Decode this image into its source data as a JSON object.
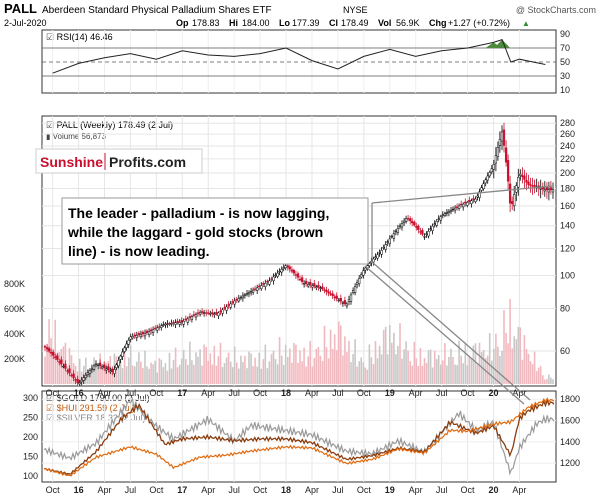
{
  "header": {
    "symbol": "PALL",
    "name": "Aberdeen Standard Physical Palladium Shares ETF",
    "exchange": "NYSE",
    "watermark": "@ StockCharts.com",
    "date": "2-Jul-2020",
    "op_label": "Op",
    "op": "178.83",
    "hi_label": "Hi",
    "hi": "184.00",
    "lo_label": "Lo",
    "lo": "177.39",
    "cl_label": "Cl",
    "cl": "178.49",
    "vol_label": "Vol",
    "vol": "56.9K",
    "chg_label": "Chg",
    "chg": "+1.27 (+0.72%)",
    "chg_arrow": "▲"
  },
  "logo": {
    "part1": "Sunshine",
    "part2": "Profits.com"
  },
  "annotation": {
    "lines": [
      "The leader - palladium - is now lagging,",
      "while the laggard - gold stocks (brown",
      "line) - is now leading."
    ]
  },
  "colors": {
    "rsi_fill": "#4e8a3e",
    "candle_up": "#000000",
    "candle_down": "#c8102e",
    "volume": "#c8c8c8",
    "volume_down": "#f0b9bf",
    "gold": "#e06a10",
    "hui": "#8a3d0f",
    "silver": "#9a9a9a"
  },
  "chart_data": [
    {
      "type": "line",
      "panel": "rsi",
      "legend": "RSI(14) 46.46",
      "y_ticks": [
        "90",
        "70",
        "50",
        "30",
        "10"
      ],
      "ylim": [
        10,
        90
      ],
      "reference_levels": [
        70,
        50,
        30
      ],
      "series": [
        {
          "name": "RSI(14)",
          "x": [
            "2015-10",
            "2016-01",
            "2016-04",
            "2016-07",
            "2016-10",
            "2017-01",
            "2017-04",
            "2017-07",
            "2017-10",
            "2018-01",
            "2018-04",
            "2018-07",
            "2018-10",
            "2019-01",
            "2019-04",
            "2019-07",
            "2019-10",
            "2020-01",
            "2020-02",
            "2020-03",
            "2020-04",
            "2020-07"
          ],
          "values": [
            34,
            48,
            56,
            62,
            54,
            66,
            60,
            58,
            62,
            70,
            52,
            40,
            58,
            68,
            58,
            66,
            70,
            78,
            82,
            50,
            54,
            46.46
          ]
        }
      ]
    },
    {
      "type": "candlestick",
      "panel": "price",
      "legend": "PALL (Weekly) 178.49 (2 Jul)",
      "volume_legend": "Volume 56,873",
      "scale": "log",
      "y_ticks": [
        "280",
        "260",
        "240",
        "220",
        "200",
        "180",
        "160",
        "140",
        "120",
        "100",
        "80",
        "60"
      ],
      "volume_ticks": [
        "800K",
        "600K",
        "400K",
        "200K"
      ],
      "x_ticks": [
        "Oct",
        "16",
        "Apr",
        "Jul",
        "Oct",
        "17",
        "Apr",
        "Jul",
        "Oct",
        "18",
        "Apr",
        "Jul",
        "Oct",
        "19",
        "Apr",
        "Jul",
        "Oct",
        "20",
        "Apr"
      ],
      "series": [
        {
          "name": "PALL",
          "x": [
            "2015-09",
            "2015-11",
            "2016-01",
            "2016-03",
            "2016-05",
            "2016-07",
            "2016-09",
            "2016-11",
            "2017-01",
            "2017-03",
            "2017-05",
            "2017-07",
            "2017-09",
            "2017-11",
            "2018-01",
            "2018-03",
            "2018-05",
            "2018-07",
            "2018-08",
            "2018-10",
            "2018-12",
            "2019-01",
            "2019-03",
            "2019-05",
            "2019-07",
            "2019-09",
            "2019-11",
            "2020-01",
            "2020-02",
            "2020-03",
            "2020-04",
            "2020-05",
            "2020-07"
          ],
          "values": [
            62,
            55,
            48,
            55,
            52,
            66,
            68,
            72,
            73,
            78,
            77,
            84,
            90,
            96,
            107,
            95,
            92,
            85,
            82,
            104,
            118,
            128,
            148,
            130,
            150,
            160,
            168,
            210,
            265,
            155,
            200,
            185,
            178.49
          ]
        },
        {
          "name": "Volume",
          "x": [
            "2015-10",
            "2016-01",
            "2016-04",
            "2016-07",
            "2016-10",
            "2017-01",
            "2017-04",
            "2017-07",
            "2017-10",
            "2018-01",
            "2018-04",
            "2018-07",
            "2018-10",
            "2019-01",
            "2019-04",
            "2019-07",
            "2019-10",
            "2020-01",
            "2020-03",
            "2020-05",
            "2020-07"
          ],
          "values": [
            400000,
            150000,
            180000,
            230000,
            160000,
            230000,
            260000,
            210000,
            210000,
            280000,
            240000,
            420000,
            170000,
            420000,
            230000,
            230000,
            260000,
            300000,
            520000,
            270000,
            56873
          ]
        }
      ]
    },
    {
      "type": "line",
      "panel": "comparison",
      "legend_entries": [
        "$GOLD 1790.00 (2 Jul)",
        "$HUI 291.59 (2 Jul)",
        "$SILVER 18.32 (2 Jul)"
      ],
      "y_ticks_left": [
        "300",
        "250",
        "200",
        "150",
        "100"
      ],
      "y_ticks_right": [
        "1800",
        "1600",
        "1400",
        "1200"
      ],
      "x_ticks": [
        "Oct",
        "16",
        "Apr",
        "Jul",
        "Oct",
        "17",
        "Apr",
        "Jul",
        "Oct",
        "18",
        "Apr",
        "Jul",
        "Oct",
        "19",
        "Apr",
        "Jul",
        "Oct",
        "20",
        "Apr"
      ],
      "series": [
        {
          "name": "$GOLD",
          "x": [
            "2015-09",
            "2015-12",
            "2016-03",
            "2016-07",
            "2016-10",
            "2016-12",
            "2017-03",
            "2017-06",
            "2017-09",
            "2018-01",
            "2018-04",
            "2018-08",
            "2018-11",
            "2019-02",
            "2019-05",
            "2019-08",
            "2019-10",
            "2020-01",
            "2020-03",
            "2020-05",
            "2020-07"
          ],
          "values": [
            1130,
            1060,
            1240,
            1340,
            1270,
            1140,
            1240,
            1260,
            1300,
            1340,
            1330,
            1180,
            1220,
            1320,
            1280,
            1500,
            1490,
            1560,
            1580,
            1720,
            1790
          ]
        },
        {
          "name": "$HUI",
          "x": [
            "2015-09",
            "2015-12",
            "2016-03",
            "2016-06",
            "2016-08",
            "2016-11",
            "2017-01",
            "2017-04",
            "2017-07",
            "2017-10",
            "2018-01",
            "2018-04",
            "2018-08",
            "2018-11",
            "2019-02",
            "2019-05",
            "2019-08",
            "2019-11",
            "2020-01",
            "2020-03",
            "2020-04",
            "2020-05",
            "2020-07"
          ],
          "values": [
            115,
            100,
            160,
            250,
            285,
            180,
            195,
            200,
            190,
            195,
            195,
            185,
            140,
            150,
            170,
            160,
            240,
            210,
            230,
            150,
            250,
            270,
            291.59
          ]
        },
        {
          "name": "$SILVER",
          "x": [
            "2015-09",
            "2015-12",
            "2016-03",
            "2016-07",
            "2016-10",
            "2016-12",
            "2017-04",
            "2017-07",
            "2017-09",
            "2018-01",
            "2018-04",
            "2018-08",
            "2018-11",
            "2019-02",
            "2019-05",
            "2019-09",
            "2019-11",
            "2020-01",
            "2020-03",
            "2020-04",
            "2020-06",
            "2020-07"
          ],
          "values": [
            14.8,
            13.8,
            15.5,
            20.5,
            17.5,
            16.0,
            18.3,
            15.8,
            17.6,
            17.0,
            16.5,
            14.6,
            14.3,
            15.8,
            14.5,
            19.0,
            17.0,
            18.0,
            12.0,
            15.0,
            17.8,
            18.32
          ]
        }
      ]
    }
  ]
}
